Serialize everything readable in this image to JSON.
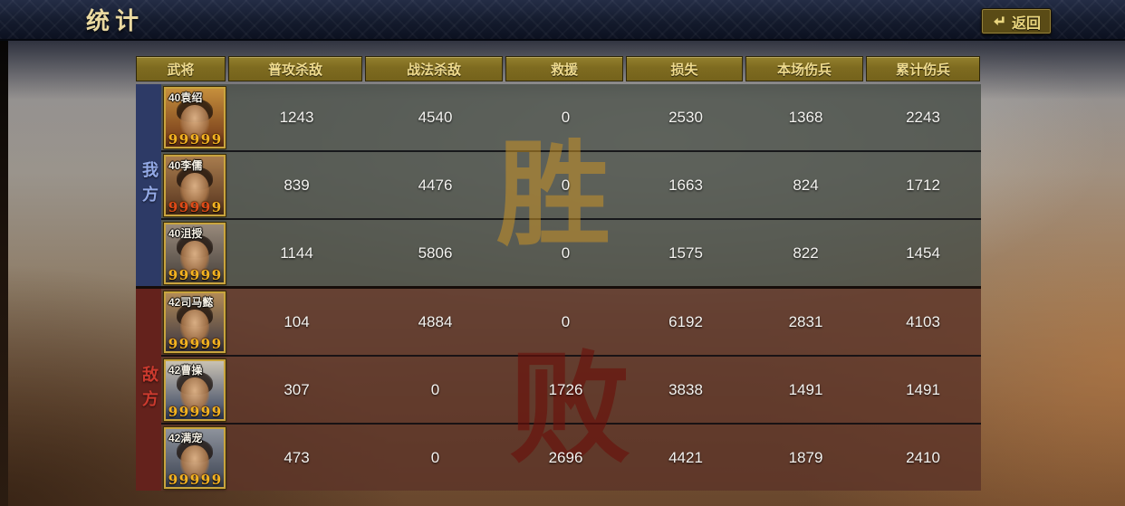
{
  "topbar": {
    "title": "统计",
    "back_label": "返回"
  },
  "colors": {
    "header_text": "#eeda8e",
    "ally_rail": "#2d3a66",
    "ally_rail_text": "#93a9e6",
    "enemy_rail": "#64221c",
    "enemy_rail_text": "#cc3a2e",
    "victory_watermark": "#c89227",
    "defeat_watermark": "#6b100a",
    "star_gold": "#f3b321",
    "star_red": "#e04a18"
  },
  "table": {
    "headers": [
      "武将",
      "普攻杀敌",
      "战法杀敌",
      "救援",
      "损失",
      "本场伤兵",
      "累计伤兵"
    ],
    "star_glyph": "9",
    "sections": [
      {
        "id": "ally",
        "side_label": "我方",
        "watermark": "胜",
        "rows": [
          {
            "general": "40袁绍",
            "stars": [
              "gold",
              "gold",
              "gold",
              "gold",
              "gold"
            ],
            "portrait_colors": [
              "#c68f3c",
              "#6e3417"
            ],
            "values": [
              "1243",
              "4540",
              "0",
              "2530",
              "1368",
              "2243"
            ]
          },
          {
            "general": "40李儒",
            "stars": [
              "red",
              "red",
              "red",
              "red",
              "gold"
            ],
            "portrait_colors": [
              "#a87c4e",
              "#55331d"
            ],
            "values": [
              "839",
              "4476",
              "0",
              "1663",
              "824",
              "1712"
            ]
          },
          {
            "general": "40沮授",
            "stars": [
              "gold",
              "gold",
              "gold",
              "gold",
              "gold"
            ],
            "portrait_colors": [
              "#98897b",
              "#46403a"
            ],
            "values": [
              "1144",
              "5806",
              "0",
              "1575",
              "822",
              "1454"
            ]
          }
        ]
      },
      {
        "id": "enemy",
        "side_label": "敌方",
        "watermark": "败",
        "rows": [
          {
            "general": "42司马懿",
            "stars": [
              "gold",
              "gold",
              "gold",
              "gold",
              "gold"
            ],
            "portrait_colors": [
              "#b18a57",
              "#3b3642"
            ],
            "values": [
              "104",
              "4884",
              "0",
              "6192",
              "2831",
              "4103"
            ]
          },
          {
            "general": "42曹操",
            "stars": [
              "gold",
              "gold",
              "gold",
              "gold",
              "gold"
            ],
            "portrait_colors": [
              "#c9c2b4",
              "#33405e"
            ],
            "values": [
              "307",
              "0",
              "1726",
              "3838",
              "1491",
              "1491"
            ]
          },
          {
            "general": "42满宠",
            "stars": [
              "gold",
              "gold",
              "gold",
              "gold",
              "gold"
            ],
            "portrait_colors": [
              "#8d929c",
              "#3a4150"
            ],
            "values": [
              "473",
              "0",
              "2696",
              "4421",
              "1879",
              "2410"
            ]
          }
        ]
      }
    ]
  }
}
